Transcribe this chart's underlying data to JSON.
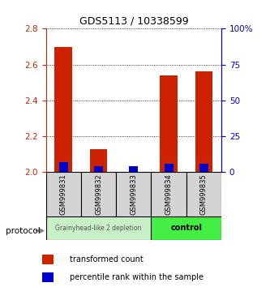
{
  "title": "GDS5113 / 10338599",
  "samples": [
    "GSM999831",
    "GSM999832",
    "GSM999833",
    "GSM999834",
    "GSM999835"
  ],
  "red_values": [
    2.7,
    2.13,
    2.0,
    2.54,
    2.56
  ],
  "blue_values": [
    7,
    4,
    4,
    6,
    6
  ],
  "ylim_left": [
    2.0,
    2.8
  ],
  "ylim_right": [
    0,
    100
  ],
  "yticks_left": [
    2.0,
    2.2,
    2.4,
    2.6,
    2.8
  ],
  "yticks_right": [
    0,
    25,
    50,
    75,
    100
  ],
  "ytick_labels_right": [
    "0",
    "25",
    "50",
    "75",
    "100%"
  ],
  "bar_width": 0.5,
  "red_color": "#cc2200",
  "blue_color": "#0000cc",
  "group1_color": "#c8f0c8",
  "group2_color": "#44ee44",
  "group1_label": "Grainyhead-like 2 depletion",
  "group2_label": "control",
  "group1_samples": [
    0,
    1,
    2
  ],
  "group2_samples": [
    3,
    4
  ],
  "legend_red": "transformed count",
  "legend_blue": "percentile rank within the sample",
  "protocol_label": "protocol",
  "left_axis_color": "#cc2200",
  "right_axis_color": "#0000cc",
  "grid_color": "#000000",
  "tick_area_bg": "#d4d4d4"
}
